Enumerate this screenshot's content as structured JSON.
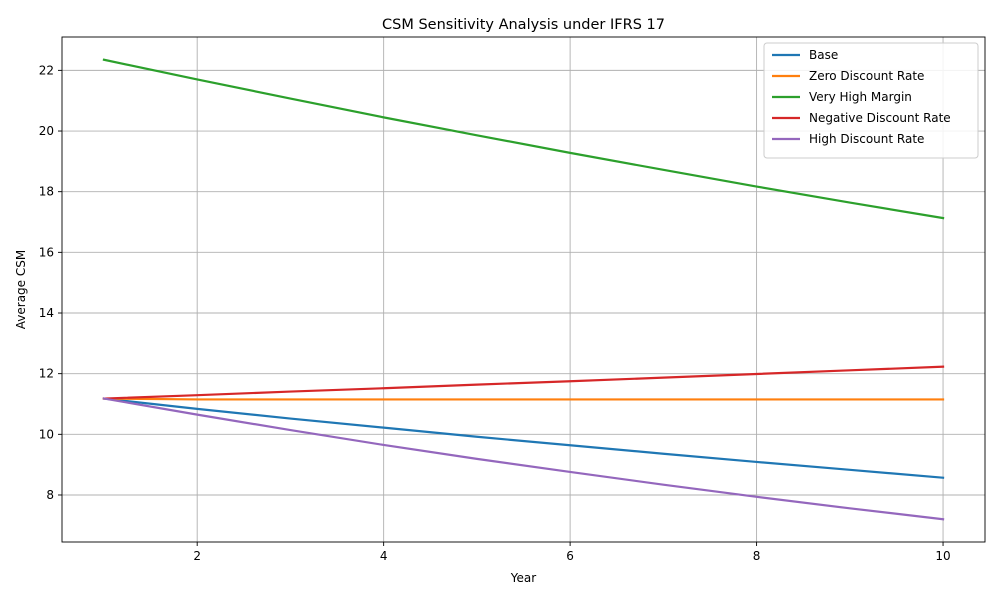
{
  "chart_data": {
    "type": "line",
    "title": "CSM Sensitivity Analysis under IFRS 17",
    "xlabel": "Year",
    "ylabel": "Average CSM",
    "xlim": [
      0.55,
      10.45
    ],
    "ylim": [
      6.45,
      23.1
    ],
    "xticks": [
      2,
      4,
      6,
      8,
      10
    ],
    "yticks": [
      8,
      10,
      12,
      14,
      16,
      18,
      20,
      22
    ],
    "grid": true,
    "legend_position": "top-right",
    "x": [
      1,
      2,
      3,
      4,
      5,
      6,
      7,
      8,
      9,
      10
    ],
    "series": [
      {
        "name": "Base",
        "color": "#1f77b4",
        "values": [
          11.18,
          10.84,
          10.52,
          10.22,
          9.92,
          9.64,
          9.36,
          9.09,
          8.83,
          8.57
        ]
      },
      {
        "name": "Zero Discount Rate",
        "color": "#ff7f0e",
        "values": [
          11.18,
          11.15,
          11.15,
          11.15,
          11.15,
          11.15,
          11.15,
          11.15,
          11.15,
          11.15
        ]
      },
      {
        "name": "Very High Margin",
        "color": "#2ca02c",
        "values": [
          22.35,
          21.7,
          21.07,
          20.45,
          19.86,
          19.28,
          18.72,
          18.17,
          17.64,
          17.13
        ]
      },
      {
        "name": "Negative Discount Rate",
        "color": "#d62728",
        "values": [
          11.18,
          11.29,
          11.41,
          11.52,
          11.64,
          11.75,
          11.87,
          11.99,
          12.11,
          12.23
        ]
      },
      {
        "name": "High Discount Rate",
        "color": "#9467bd",
        "values": [
          11.18,
          10.65,
          10.14,
          9.65,
          9.19,
          8.76,
          8.34,
          7.94,
          7.56,
          7.2
        ]
      }
    ]
  }
}
